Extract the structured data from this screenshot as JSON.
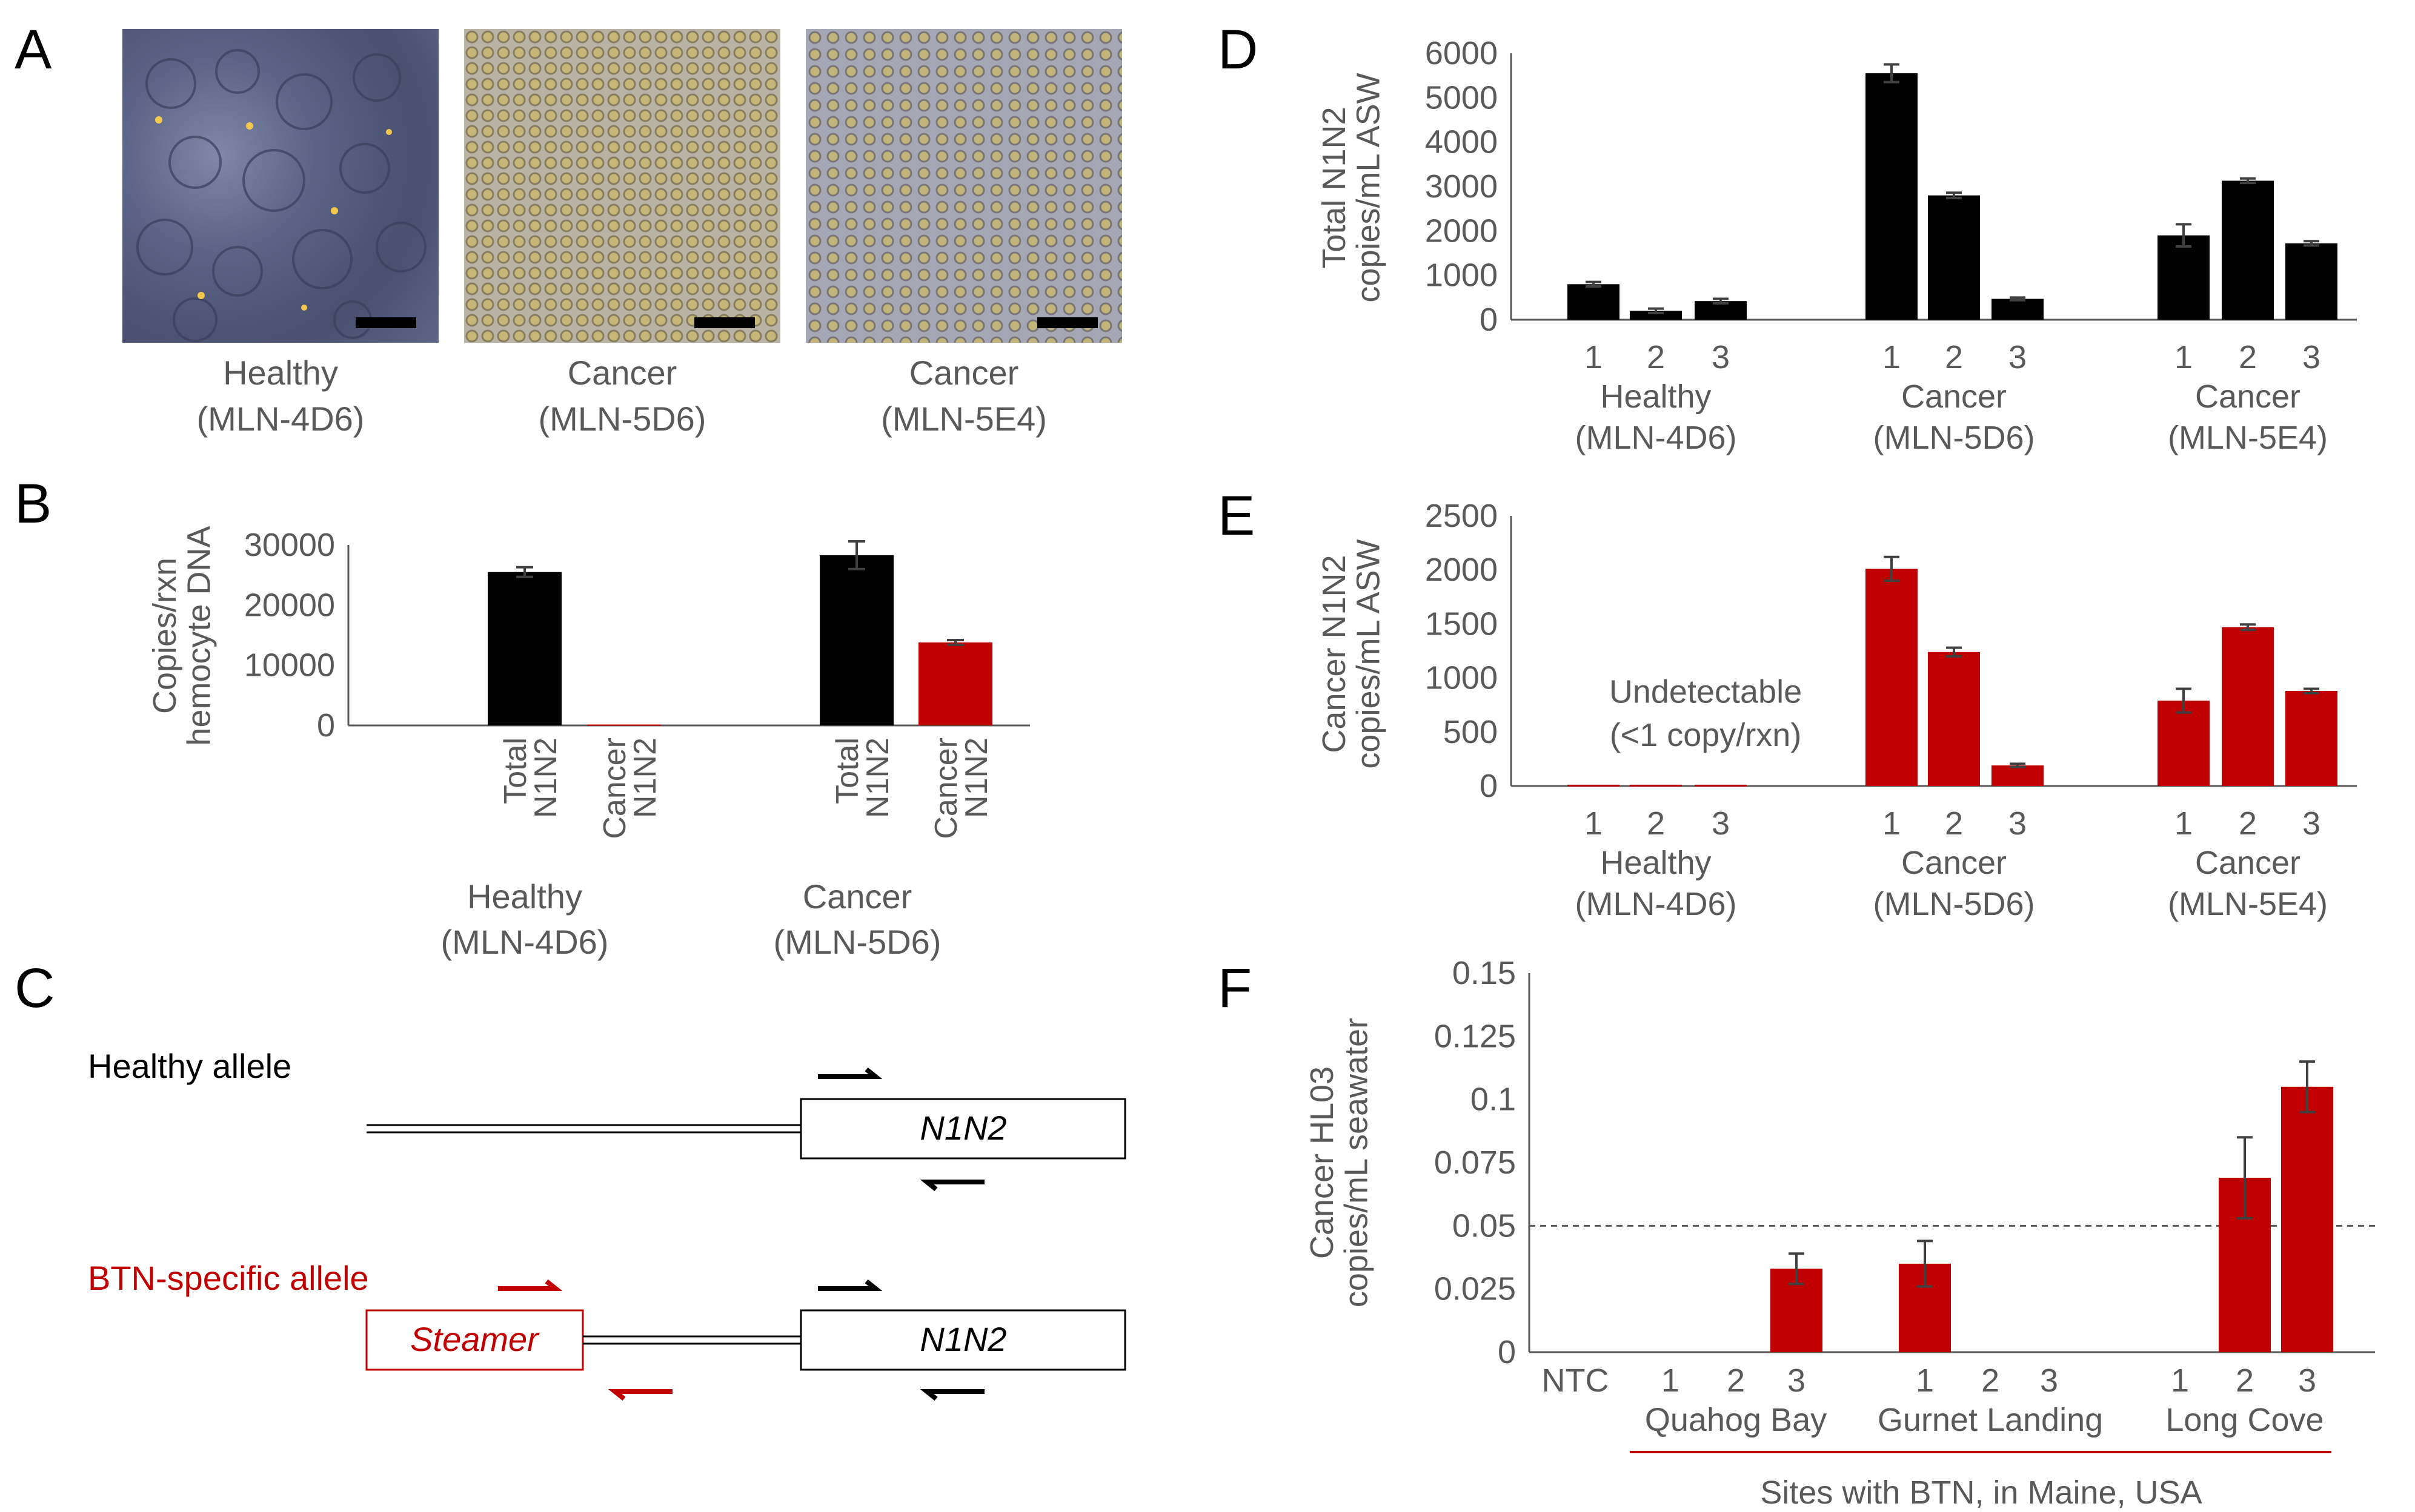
{
  "panels": {
    "A": "A",
    "B": "B",
    "C": "C",
    "D": "D",
    "E": "E",
    "F": "F"
  },
  "colors": {
    "total": "#000000",
    "cancer": "#c00000",
    "axis": "#595959",
    "text": "#595959"
  },
  "panelA": {
    "images": [
      {
        "line1": "Healthy",
        "line2": "(MLN-4D6)",
        "tone": "healthy"
      },
      {
        "line1": "Cancer",
        "line2": "(MLN-5D6)",
        "tone": "cancer"
      },
      {
        "line1": "Cancer",
        "line2": "(MLN-5E4)",
        "tone": "cancer2"
      }
    ]
  },
  "panelC": {
    "healthy_label": "Healthy allele",
    "btn_label": "BTN-specific allele",
    "gene": "N1N2",
    "gene2": "N1N2",
    "steamer": "Steamer"
  },
  "chart_data": [
    {
      "id": "B",
      "type": "bar",
      "ylabel": [
        "Copies/rxn",
        "hemocyte DNA"
      ],
      "ylim": [
        0,
        30000
      ],
      "yticks": [
        0,
        10000,
        20000,
        30000
      ],
      "groups": [
        {
          "label": [
            "Healthy",
            "(MLN-4D6)"
          ],
          "bars": [
            {
              "label": [
                "Total",
                "N1N2"
              ],
              "value": 25500,
              "err": 800,
              "series": "total"
            },
            {
              "label": [
                "Cancer",
                "N1N2"
              ],
              "value": 150,
              "err": 0,
              "series": "cancer"
            }
          ]
        },
        {
          "label": [
            "Cancer",
            "(MLN-5D6)"
          ],
          "bars": [
            {
              "label": [
                "Total",
                "N1N2"
              ],
              "value": 28300,
              "err": 2300,
              "series": "total"
            },
            {
              "label": [
                "Cancer",
                "N1N2"
              ],
              "value": 13800,
              "err": 400,
              "series": "cancer"
            }
          ]
        }
      ]
    },
    {
      "id": "D",
      "type": "bar",
      "ylabel": [
        "Total N1N2",
        "copies/mL ASW"
      ],
      "ylim": [
        0,
        6000
      ],
      "yticks": [
        0,
        1000,
        2000,
        3000,
        4000,
        5000,
        6000
      ],
      "series": "total",
      "groups": [
        {
          "label": [
            "Healthy",
            "(MLN-4D6)"
          ],
          "bars": [
            {
              "label": "1",
              "value": 800,
              "err": 50
            },
            {
              "label": "2",
              "value": 200,
              "err": 50
            },
            {
              "label": "3",
              "value": 420,
              "err": 50
            }
          ]
        },
        {
          "label": [
            "Cancer",
            "(MLN-5D6)"
          ],
          "bars": [
            {
              "label": "1",
              "value": 5550,
              "err": 200
            },
            {
              "label": "2",
              "value": 2800,
              "err": 60
            },
            {
              "label": "3",
              "value": 470,
              "err": 30
            }
          ]
        },
        {
          "label": [
            "Cancer",
            "(MLN-5E4)"
          ],
          "bars": [
            {
              "label": "1",
              "value": 1900,
              "err": 250
            },
            {
              "label": "2",
              "value": 3130,
              "err": 50
            },
            {
              "label": "3",
              "value": 1720,
              "err": 50
            }
          ]
        }
      ]
    },
    {
      "id": "E",
      "type": "bar",
      "ylabel": [
        "Cancer N1N2",
        "copies/mL ASW"
      ],
      "ylim": [
        0,
        2500
      ],
      "yticks": [
        0,
        500,
        1000,
        1500,
        2000,
        2500
      ],
      "series": "cancer",
      "annotation": [
        "Undetectable",
        "(<1 copy/rxn)"
      ],
      "groups": [
        {
          "label": [
            "Healthy",
            "(MLN-4D6)"
          ],
          "bars": [
            {
              "label": "1",
              "value": 12,
              "err": 0
            },
            {
              "label": "2",
              "value": 12,
              "err": 0
            },
            {
              "label": "3",
              "value": 12,
              "err": 0
            }
          ]
        },
        {
          "label": [
            "Cancer",
            "(MLN-5D6)"
          ],
          "bars": [
            {
              "label": "1",
              "value": 2010,
              "err": 110
            },
            {
              "label": "2",
              "value": 1240,
              "err": 40
            },
            {
              "label": "3",
              "value": 190,
              "err": 15
            }
          ]
        },
        {
          "label": [
            "Cancer",
            "(MLN-5E4)"
          ],
          "bars": [
            {
              "label": "1",
              "value": 790,
              "err": 110
            },
            {
              "label": "2",
              "value": 1470,
              "err": 25
            },
            {
              "label": "3",
              "value": 880,
              "err": 20
            }
          ]
        }
      ]
    },
    {
      "id": "F",
      "type": "bar",
      "ylabel": [
        "Cancer  HL03",
        "copies/mL seawater"
      ],
      "ylim": [
        0,
        0.15
      ],
      "yticks": [
        0,
        0.025,
        0.05,
        0.075,
        0.1,
        0.125,
        0.15
      ],
      "ytick_labels": [
        "0",
        "0.025",
        "0.05",
        "0.075",
        "0.1",
        "0.125",
        "0.15"
      ],
      "series": "cancer",
      "threshold": 0.05,
      "ntc": "NTC",
      "groups": [
        {
          "label": "Quahog Bay",
          "bars": [
            {
              "label": "1",
              "value": 0,
              "err": 0
            },
            {
              "label": "2",
              "value": 0,
              "err": 0
            },
            {
              "label": "3",
              "value": 0.033,
              "err": 0.006
            }
          ]
        },
        {
          "label": "Gurnet Landing",
          "bars": [
            {
              "label": "1",
              "value": 0.035,
              "err": 0.009
            },
            {
              "label": "2",
              "value": 0,
              "err": 0
            },
            {
              "label": "3",
              "value": 0,
              "err": 0
            }
          ]
        },
        {
          "label": "Long Cove",
          "bars": [
            {
              "label": "1",
              "value": 0,
              "err": 0
            },
            {
              "label": "2",
              "value": 0.069,
              "err": 0.016
            },
            {
              "label": "3",
              "value": 0.105,
              "err": 0.01
            }
          ]
        }
      ],
      "footer": "Sites with BTN, in Maine, USA"
    }
  ]
}
